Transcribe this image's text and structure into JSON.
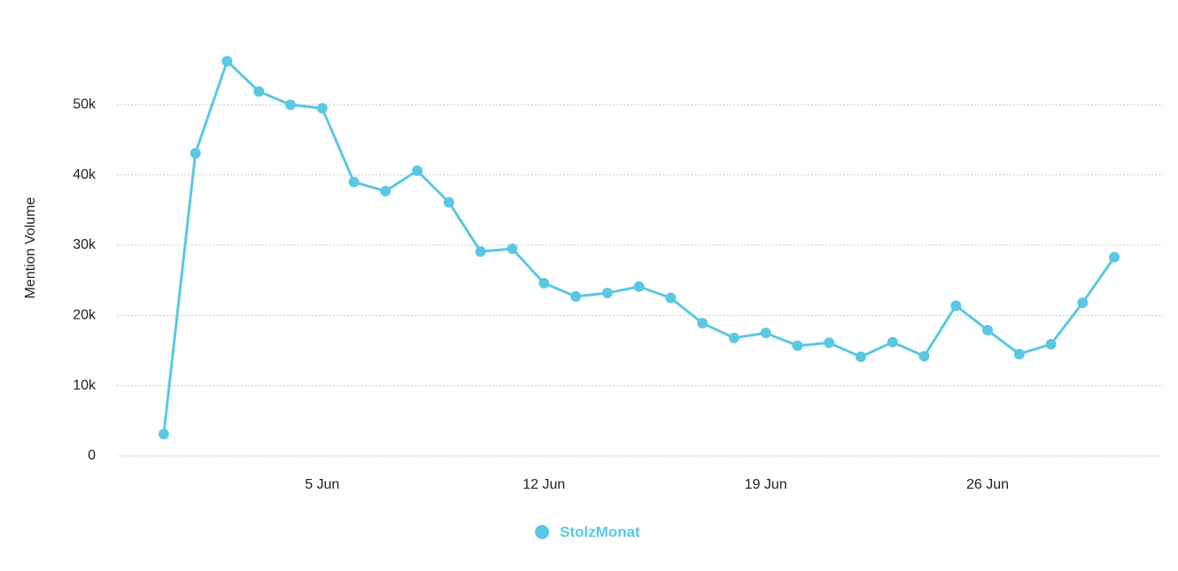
{
  "chart_data": {
    "type": "line",
    "y_label": "Mention Volume",
    "categories": [
      null,
      null,
      null,
      null,
      null,
      "5 Jun",
      null,
      null,
      null,
      null,
      null,
      null,
      "12 Jun",
      null,
      null,
      null,
      null,
      null,
      null,
      "19 Jun",
      null,
      null,
      null,
      null,
      null,
      null,
      "26 Jun",
      null,
      null,
      null,
      null
    ],
    "series": [
      {
        "name": "StolzMonat",
        "color": "#5bc8e3",
        "values": [
          3100,
          43100,
          56200,
          51900,
          50000,
          49500,
          39000,
          37700,
          40600,
          36100,
          29100,
          29500,
          24600,
          22700,
          23200,
          24100,
          22500,
          18900,
          16800,
          17500,
          15700,
          16100,
          14100,
          16200,
          14200,
          21400,
          17900,
          14500,
          15900,
          21800,
          28300
        ]
      }
    ],
    "ylim": [
      0,
      60000
    ],
    "yticks": [
      0,
      {
        "value": 10000,
        "label": "10k"
      },
      {
        "value": 20000,
        "label": "20k"
      },
      {
        "value": 30000,
        "label": "30k"
      },
      {
        "value": 40000,
        "label": "40k"
      },
      {
        "value": 50000,
        "label": "50k"
      }
    ],
    "grid": true,
    "legend": "bottom"
  }
}
